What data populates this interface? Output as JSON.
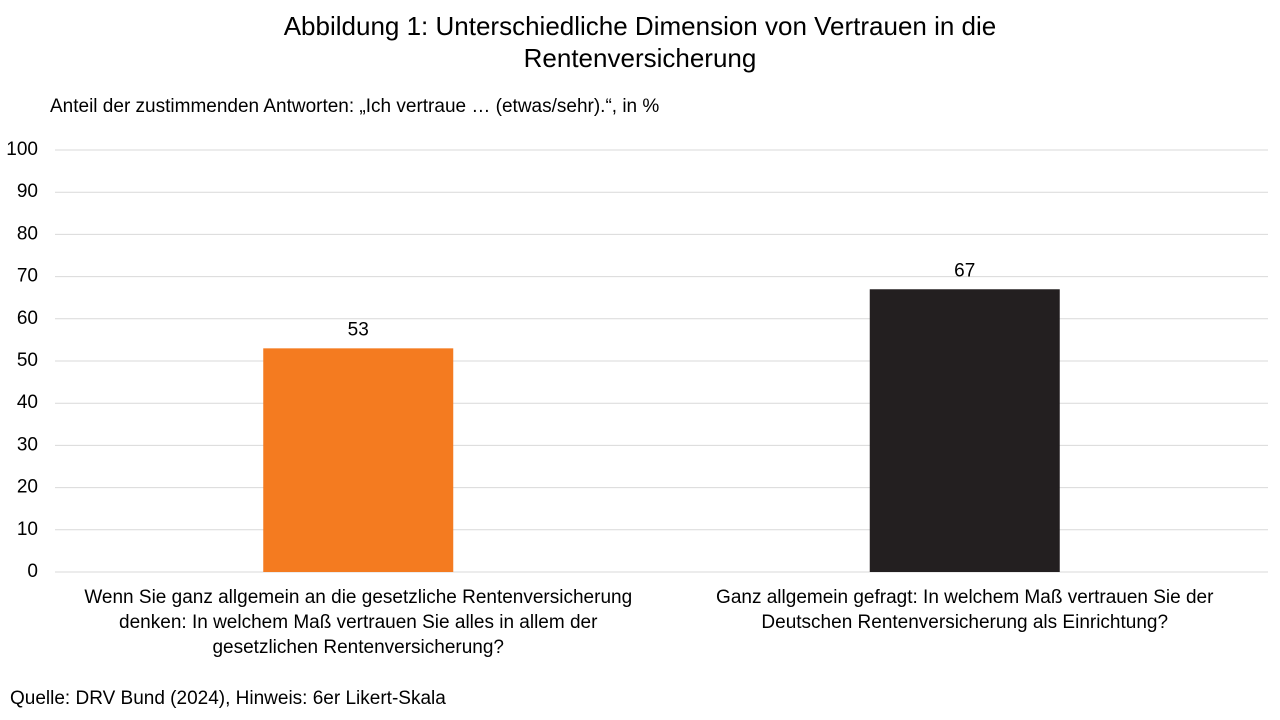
{
  "chart_data": {
    "type": "bar",
    "title": "Abbildung 1: Unterschiedliche Dimension von Vertrauen in die Rentenversicherung",
    "subtitle": "Anteil der zustimmenden Antworten: „Ich vertraue … (etwas/sehr).“, in %",
    "categories": [
      "Wenn Sie ganz allgemein an die gesetzliche Rentenversicherung denken: In welchem Maß vertrauen Sie alles in allem der gesetzlichen Rentenversicherung?",
      "Ganz allgemein gefragt: In welchem Maß vertrauen Sie der Deutschen Rentenversicherung als Einrichtung?"
    ],
    "values": [
      53,
      67
    ],
    "colors": [
      "#f47b20",
      "#231f20"
    ],
    "ylim": [
      0,
      100
    ],
    "yticks": [
      0,
      10,
      20,
      30,
      40,
      50,
      60,
      70,
      80,
      90,
      100
    ],
    "grid": true,
    "source": "Quelle: DRV Bund (2024), Hinweis: 6er Likert-Skala"
  }
}
